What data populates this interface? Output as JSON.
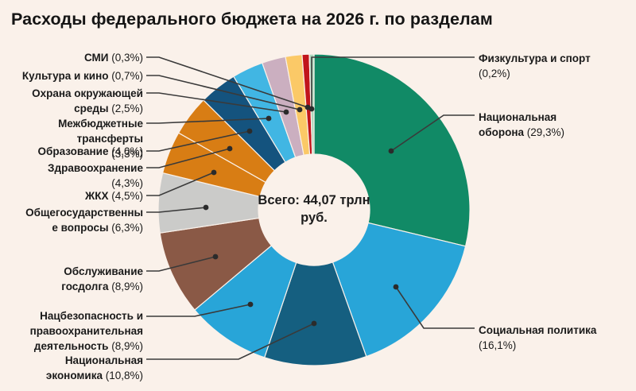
{
  "title": "Расходы федерального бюджета на 2026 г. по разделам",
  "center_label": {
    "line1": "Всего: 44,07 трлн",
    "line2": "руб."
  },
  "colors": {
    "background": "#faf1ea",
    "callout_line": "#3a3a3a",
    "callout_dot": "#2b2b2b",
    "title_text": "#151515",
    "label_text": "#1a1a1a"
  },
  "chart_data": {
    "type": "pie",
    "subtype": "donut",
    "title": "Расходы федерального бюджета на 2026 г. по разделам",
    "center_total_text": "Всего: 44,07 трлн руб.",
    "total": "44,07 трлн руб.",
    "units": "% of total",
    "start_angle": "12 o'clock",
    "direction": "clockwise",
    "legend_position": "callout-labels",
    "slices": [
      {
        "id": "oborona",
        "label": "Национальная оборона",
        "pct": 29.3,
        "pct_text": "(29,3%)",
        "color": "#118a66",
        "side": "right"
      },
      {
        "id": "socpolitika",
        "label": "Социальная политика",
        "pct": 16.1,
        "pct_text": "(16,1%)",
        "color": "#28a5d8",
        "side": "right"
      },
      {
        "id": "nacekonomika",
        "label": "Национальная экономика",
        "pct": 10.8,
        "pct_text": "(10,8%)",
        "color": "#155f80",
        "side": "left"
      },
      {
        "id": "nacbez",
        "label": "Нацбезопасность и правоохранительная деятельность",
        "pct": 8.9,
        "pct_text": "(8,9%)",
        "color": "#28a5d8",
        "side": "left"
      },
      {
        "id": "gosdolg",
        "label": "Обслуживание госдолга",
        "pct": 8.9,
        "pct_text": "(8,9%)",
        "color": "#8a5946",
        "side": "left"
      },
      {
        "id": "obshchegos",
        "label": "Общегосударственны е вопросы",
        "pct": 6.3,
        "pct_text": "(6,3%)",
        "color": "#cbcbc9",
        "side": "left"
      },
      {
        "id": "zhkh",
        "label": "ЖКХ",
        "pct": 4.5,
        "pct_text": "(4,5%)",
        "color": "#d87d14",
        "side": "left"
      },
      {
        "id": "zdrav",
        "label": "Здравоохранение",
        "pct": 4.3,
        "pct_text": "(4,3%)",
        "color": "#d87d14",
        "side": "left"
      },
      {
        "id": "obrazovanie",
        "label": "Образование",
        "pct": 4.0,
        "pct_text": "(4,0%)",
        "color": "#14537e",
        "side": "left"
      },
      {
        "id": "mezhbyudzhet",
        "label": "Межбюджетные трансферты",
        "pct": 3.3,
        "pct_text": "(3,3%)",
        "color": "#41b6e3",
        "side": "left"
      },
      {
        "id": "ohrana",
        "label": "Охрана окружающей среды",
        "pct": 2.5,
        "pct_text": "(2,5%)",
        "color": "#cbafc0",
        "side": "left"
      },
      {
        "id": "kultura",
        "label": "Культура и кино",
        "pct": 0.7,
        "pct_text": "(0,7%)",
        "color": "#fbc967",
        "side": "left"
      },
      {
        "id": "smi",
        "label": "СМИ",
        "pct": 0.3,
        "pct_text": "(0,3%)",
        "color": "#c1151b",
        "side": "left"
      },
      {
        "id": "fizkultura",
        "label": "Физкультура и спорт",
        "pct": 0.2,
        "pct_text": "(0,2%)",
        "color": "#aed8bd",
        "side": "right"
      }
    ]
  }
}
